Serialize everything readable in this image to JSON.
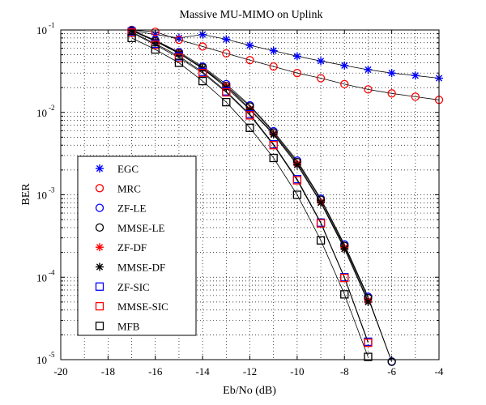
{
  "chart_data": {
    "type": "line",
    "title": "Massive MU-MIMO on Uplink",
    "xlabel": "Eb/No (dB)",
    "ylabel": "BER",
    "xlim": [
      -20,
      -4
    ],
    "ylim": [
      1e-05,
      0.1
    ],
    "yscale": "log",
    "grid": true,
    "legend_position": "lower-left",
    "x_ticks": [
      -20,
      -18,
      -16,
      -14,
      -12,
      -10,
      -8,
      -6,
      -4
    ],
    "y_ticks": [
      {
        "value": 0.1,
        "base": "10",
        "exp": "-1"
      },
      {
        "value": 0.01,
        "base": "10",
        "exp": "-2"
      },
      {
        "value": 0.001,
        "base": "10",
        "exp": "-3"
      },
      {
        "value": 0.0001,
        "base": "10",
        "exp": "-4"
      },
      {
        "value": 1e-05,
        "base": "10",
        "exp": "-5"
      }
    ],
    "series": [
      {
        "name": "EGC",
        "marker": "star",
        "color": "#0000ff",
        "x": [
          -17,
          -16,
          -15,
          -14,
          -13,
          -12,
          -11,
          -10,
          -9,
          -8,
          -7,
          -6,
          -5,
          -4
        ],
        "y": [
          0.098,
          0.088,
          0.08,
          0.088,
          0.077,
          0.065,
          0.056,
          0.048,
          0.042,
          0.037,
          0.033,
          0.03,
          0.028,
          0.026
        ]
      },
      {
        "name": "MRC",
        "marker": "circle",
        "color": "#ff0000",
        "x": [
          -17,
          -16,
          -15,
          -14,
          -13,
          -12,
          -11,
          -10,
          -9,
          -8,
          -7,
          -6,
          -5,
          -4
        ],
        "y": [
          0.1,
          0.095,
          0.076,
          0.063,
          0.052,
          0.043,
          0.036,
          0.03,
          0.026,
          0.022,
          0.019,
          0.017,
          0.0155,
          0.0142
        ]
      },
      {
        "name": "ZF-LE",
        "marker": "circle",
        "color": "#0000ff",
        "x": [
          -17,
          -16,
          -15,
          -14,
          -13,
          -12,
          -11,
          -10,
          -9,
          -8,
          -7,
          -6
        ],
        "y": [
          0.1,
          0.075,
          0.054,
          0.036,
          0.022,
          0.0122,
          0.0059,
          0.0026,
          0.0009,
          0.00025,
          5.8e-05,
          9.5e-06
        ]
      },
      {
        "name": "MMSE-LE",
        "marker": "circle",
        "color": "#000000",
        "x": [
          -17,
          -16,
          -15,
          -14,
          -13,
          -12,
          -11,
          -10,
          -9,
          -8,
          -7,
          -6
        ],
        "y": [
          0.098,
          0.073,
          0.052,
          0.035,
          0.021,
          0.0118,
          0.0057,
          0.0025,
          0.00087,
          0.00024,
          5.6e-05,
          9.4e-06
        ]
      },
      {
        "name": "ZF-DF",
        "marker": "star",
        "color": "#ff0000",
        "x": [
          -17,
          -16,
          -15,
          -14,
          -13,
          -12,
          -11,
          -10,
          -9,
          -8,
          -7
        ],
        "y": [
          0.1,
          0.074,
          0.053,
          0.034,
          0.021,
          0.011,
          0.0055,
          0.0024,
          0.00082,
          0.00023,
          5.2e-05
        ]
      },
      {
        "name": "MMSE-DF",
        "marker": "star",
        "color": "#000000",
        "x": [
          -17,
          -16,
          -15,
          -14,
          -13,
          -12,
          -11,
          -10,
          -9,
          -8,
          -7
        ],
        "y": [
          0.099,
          0.073,
          0.052,
          0.034,
          0.02,
          0.0108,
          0.0054,
          0.0023,
          0.0008,
          0.00022,
          5e-05
        ]
      },
      {
        "name": "ZF-SIC",
        "marker": "square",
        "color": "#0000ff",
        "x": [
          -17,
          -16,
          -15,
          -14,
          -13,
          -12,
          -11,
          -10,
          -9,
          -8,
          -7
        ],
        "y": [
          0.095,
          0.068,
          0.048,
          0.031,
          0.018,
          0.0095,
          0.0041,
          0.00155,
          0.00046,
          0.0001,
          1.65e-05
        ]
      },
      {
        "name": "MMSE-SIC",
        "marker": "square",
        "color": "#ff0000",
        "x": [
          -17,
          -16,
          -15,
          -14,
          -13,
          -12,
          -11,
          -10,
          -9,
          -8,
          -7
        ],
        "y": [
          0.093,
          0.066,
          0.046,
          0.03,
          0.0175,
          0.0092,
          0.004,
          0.0015,
          0.00045,
          9.8e-05,
          1.6e-05
        ]
      },
      {
        "name": "MFB",
        "marker": "square",
        "color": "#000000",
        "x": [
          -17,
          -16,
          -15,
          -14,
          -13,
          -12,
          -11,
          -10,
          -9,
          -8,
          -7
        ],
        "y": [
          0.08,
          0.058,
          0.04,
          0.024,
          0.0133,
          0.0065,
          0.0028,
          0.001,
          0.00028,
          6.2e-05,
          1.08e-05
        ]
      }
    ]
  }
}
